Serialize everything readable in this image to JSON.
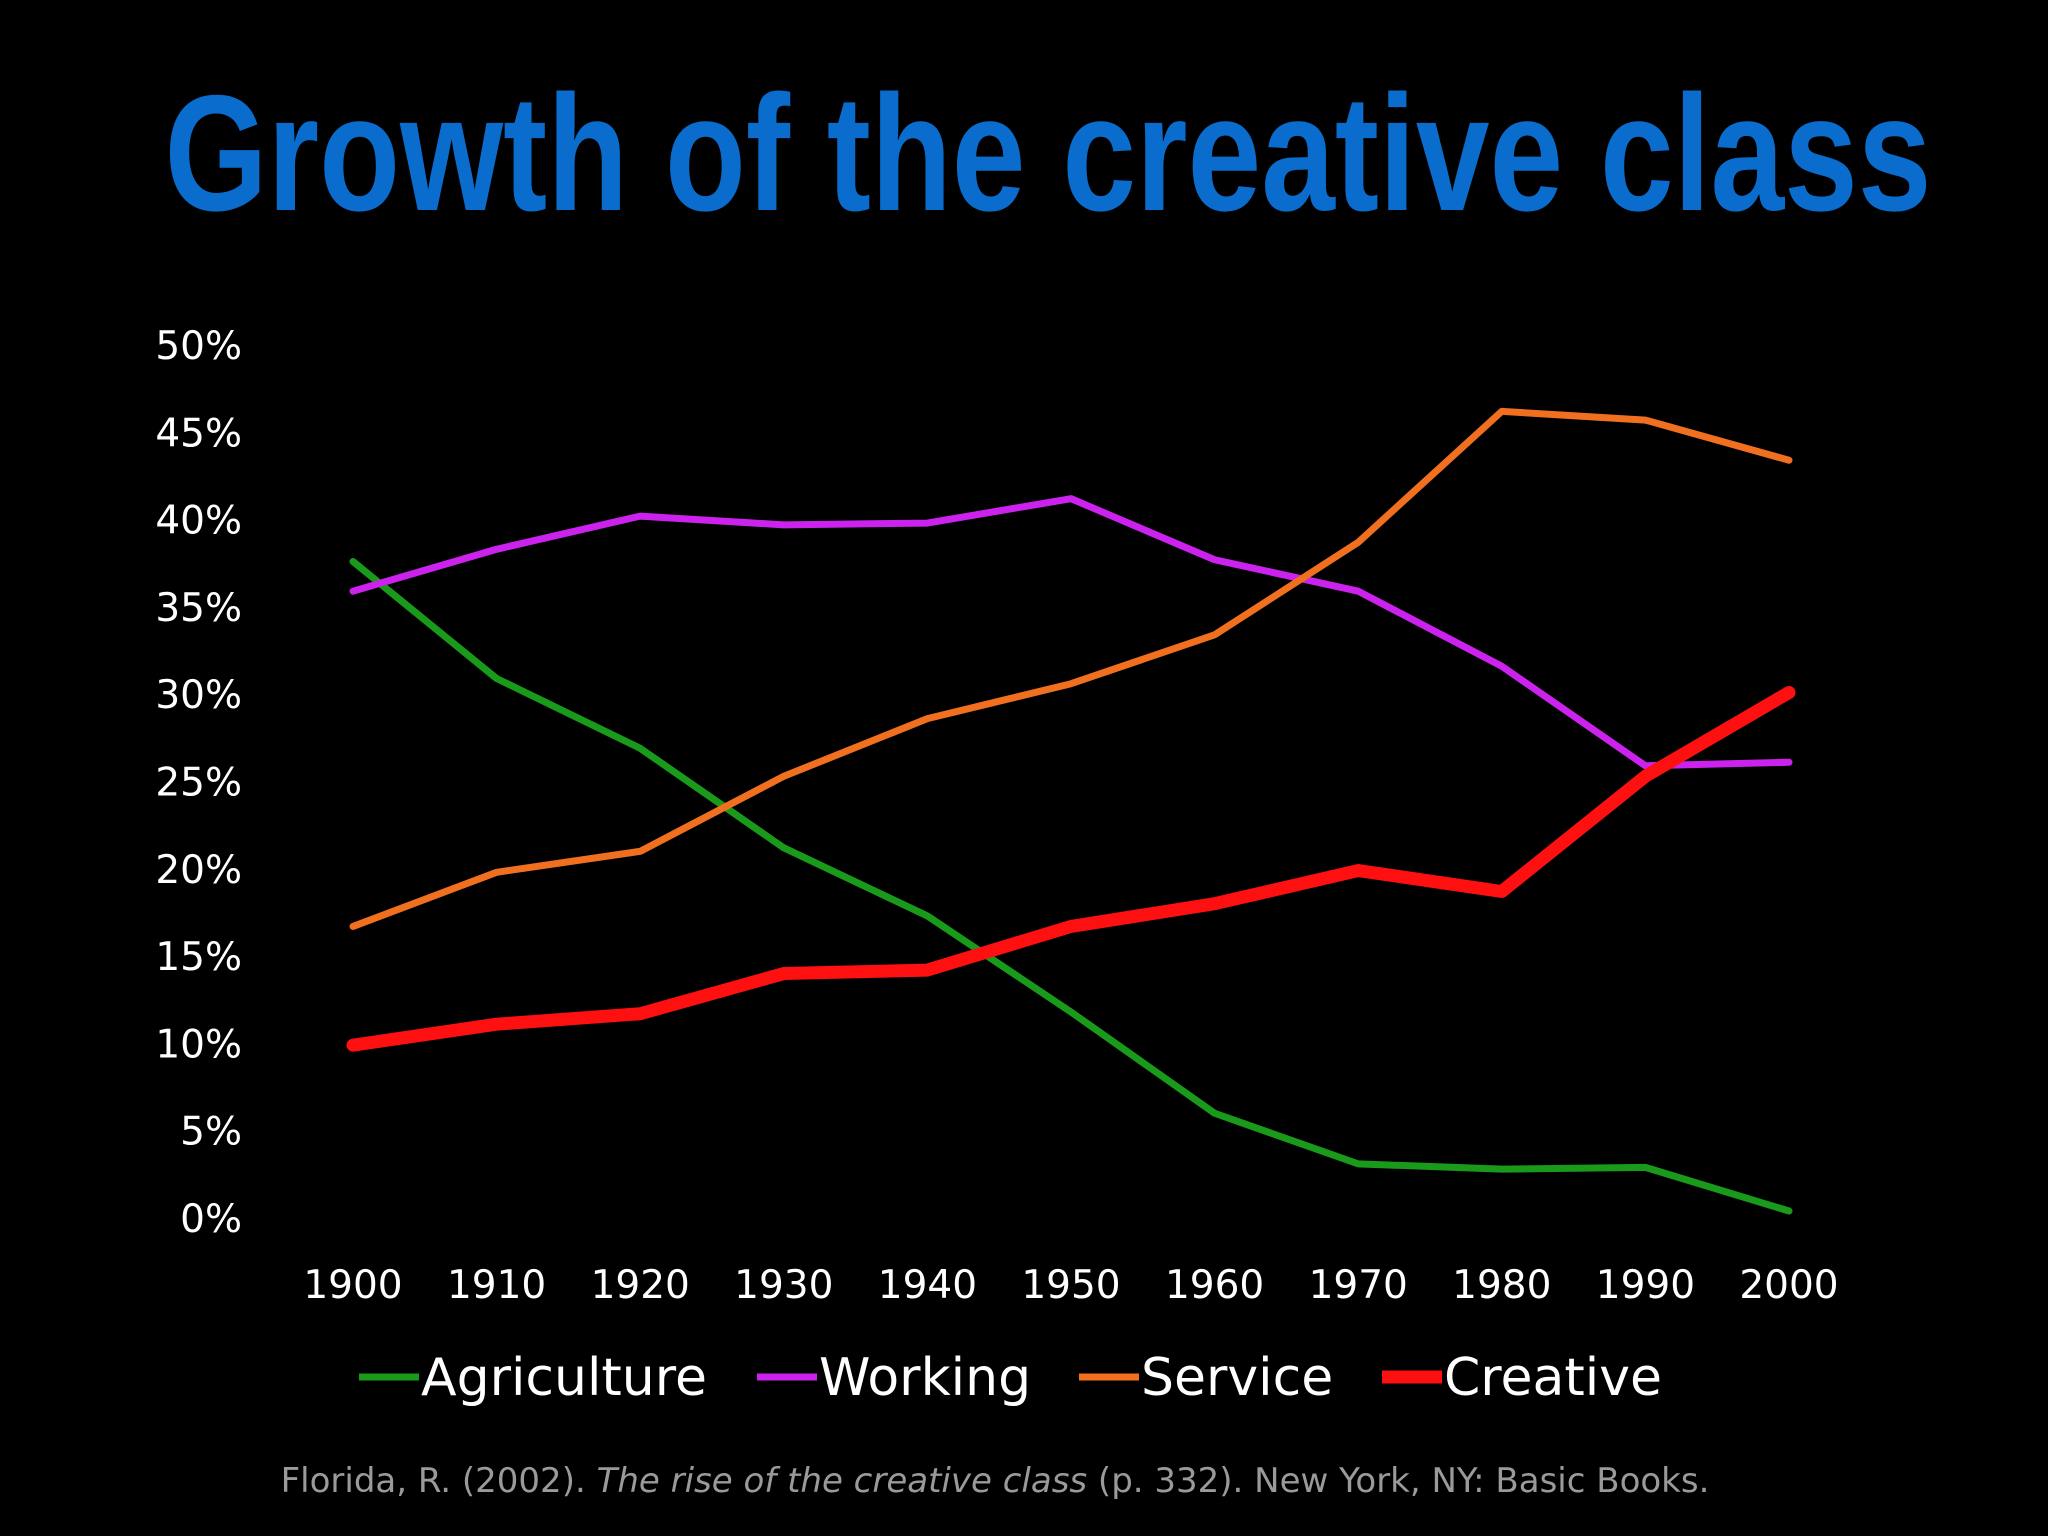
{
  "chart_data": {
    "type": "line",
    "title": "Growth of the creative class",
    "categories": [
      "1900",
      "1910",
      "1920",
      "1930",
      "1940",
      "1950",
      "1960",
      "1970",
      "1980",
      "1990",
      "2000"
    ],
    "series": [
      {
        "name": "Agriculture",
        "color": "#1a9a1a",
        "values": [
          37.6,
          30.9,
          26.9,
          21.2,
          17.3,
          11.8,
          6.0,
          3.1,
          2.8,
          2.9,
          0.4
        ]
      },
      {
        "name": "Working",
        "color": "#cc22ee",
        "values": [
          35.9,
          38.3,
          40.2,
          39.7,
          39.8,
          41.2,
          37.7,
          35.9,
          31.6,
          25.9,
          26.1
        ]
      },
      {
        "name": "Service",
        "color": "#f07020",
        "values": [
          16.7,
          19.8,
          21.0,
          25.3,
          28.6,
          30.6,
          33.4,
          38.7,
          46.2,
          45.7,
          43.4
        ]
      },
      {
        "name": "Creative",
        "color": "#ff1010",
        "values": [
          9.9,
          11.1,
          11.7,
          14.0,
          14.2,
          16.7,
          18.0,
          19.9,
          18.7,
          25.3,
          30.1
        ]
      }
    ],
    "ylim": [
      0,
      50
    ],
    "yticks": [
      {
        "value": 0,
        "label": "0%"
      },
      {
        "value": 5,
        "label": "5%"
      },
      {
        "value": 10,
        "label": "10%"
      },
      {
        "value": 15,
        "label": "15%"
      },
      {
        "value": 20,
        "label": "20%"
      },
      {
        "value": 25,
        "label": "25%"
      },
      {
        "value": 30,
        "label": "30%"
      },
      {
        "value": 35,
        "label": "35%"
      },
      {
        "value": 40,
        "label": "40%"
      },
      {
        "value": 45,
        "label": "45%"
      },
      {
        "value": 50,
        "label": "50%"
      }
    ],
    "grid": false,
    "legend": "bottom",
    "source": {
      "before": "Florida, R. (2002). ",
      "title": "The rise of the creative class",
      "after": " (p. 332). New York, NY: Basic Books."
    }
  }
}
